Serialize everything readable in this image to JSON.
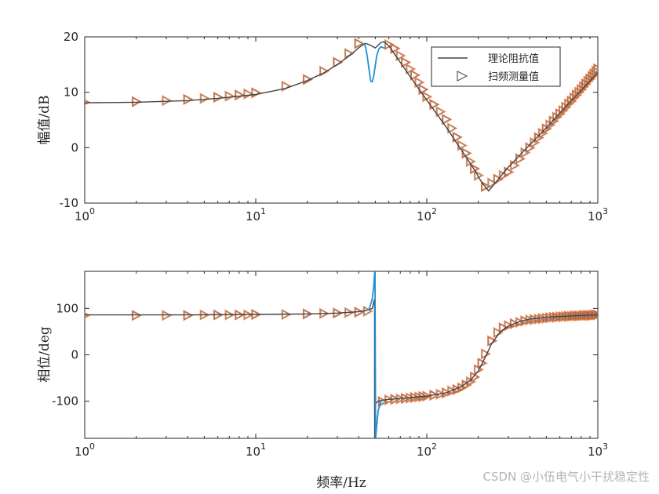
{
  "watermark": "CSDN @小伍电气小干扰稳定性",
  "chart_data": [
    {
      "type": "line",
      "ylabel": "幅值/dB",
      "xlabel": "",
      "xscale": "log",
      "xlim": [
        1,
        1000
      ],
      "ylim": [
        -10,
        20
      ],
      "xticks": [
        1,
        10,
        100,
        1000
      ],
      "xtick_labels": [
        {
          "base": "10",
          "exp": "0"
        },
        {
          "base": "10",
          "exp": "1"
        },
        {
          "base": "10",
          "exp": "2"
        },
        {
          "base": "10",
          "exp": "3"
        }
      ],
      "yticks": [
        -10,
        0,
        10,
        20
      ],
      "ytick_labels": [
        "-10",
        "0",
        "10",
        "20"
      ],
      "legend": {
        "placement": "top-right",
        "entries": [
          {
            "label": "理论阻抗值",
            "marker": "line",
            "color": "#444444"
          },
          {
            "label": "扫频测量值",
            "marker": "triangle-right",
            "color": "#f07d3c"
          }
        ]
      },
      "series": [
        {
          "name": "理论阻抗值",
          "style": "line",
          "color": "#444444",
          "x": [
            1,
            2,
            4,
            6,
            10,
            15,
            20,
            25,
            30,
            35,
            40,
            42,
            44,
            46,
            48,
            50,
            52,
            54,
            56,
            58,
            60,
            70,
            80,
            100,
            130,
            160,
            190,
            210,
            230,
            260,
            300,
            400,
            500,
            700,
            1000
          ],
          "y": [
            8.1,
            8.2,
            8.5,
            8.9,
            9.6,
            10.7,
            12.1,
            13.5,
            15.0,
            16.5,
            18.0,
            18.5,
            18.8,
            18.6,
            18.3,
            18.0,
            18.5,
            19.0,
            19.1,
            18.8,
            18.4,
            15.4,
            12.8,
            8.6,
            3.7,
            -0.5,
            -4.0,
            -6.3,
            -7.8,
            -5.8,
            -3.5,
            0.5,
            3.6,
            8.5,
            13.5
          ]
        },
        {
          "name": "",
          "style": "line",
          "color": "#1e8fd6",
          "x": [
            43,
            44,
            45,
            46,
            47,
            48,
            49,
            50,
            51,
            52,
            53,
            54,
            55,
            56,
            57
          ],
          "y": [
            18.9,
            18.0,
            16.2,
            14.0,
            12.0,
            11.9,
            13.0,
            14.9,
            16.6,
            17.5,
            18.0,
            18.2,
            18.1,
            18.0,
            18.0
          ]
        },
        {
          "name": "扫频测量值",
          "style": "triangle-right",
          "color": "#f07d3c",
          "x": [
            1,
            2,
            3,
            4,
            5,
            6,
            7,
            8,
            9,
            10,
            15,
            20,
            25,
            30,
            35,
            40,
            60,
            65,
            70,
            75,
            80,
            85,
            90,
            95,
            100,
            110,
            120,
            130,
            140,
            150,
            160,
            170,
            180,
            190,
            200,
            220,
            240,
            260,
            280,
            300,
            325,
            350,
            375,
            400,
            425,
            450,
            475,
            500,
            525,
            550,
            575,
            600,
            625,
            650,
            675,
            700,
            725,
            750,
            775,
            800,
            825,
            850,
            875,
            900,
            925,
            950,
            975,
            1000
          ],
          "y": [
            8.2,
            8.3,
            8.5,
            8.7,
            8.9,
            9.1,
            9.3,
            9.5,
            9.7,
            9.9,
            11.1,
            12.3,
            13.8,
            15.4,
            17.0,
            18.8,
            18.6,
            17.9,
            16.6,
            15.4,
            14.2,
            13.1,
            11.8,
            10.5,
            9.2,
            7.8,
            6.5,
            5.1,
            3.5,
            1.9,
            0.4,
            -1.0,
            -2.5,
            -3.8,
            -5.0,
            -7.0,
            -6.4,
            -5.7,
            -5.0,
            -4.4,
            -3.2,
            -2.0,
            -0.9,
            0.0,
            0.9,
            1.8,
            2.6,
            3.4,
            4.1,
            4.8,
            5.5,
            6.1,
            6.7,
            7.3,
            7.9,
            8.4,
            9.0,
            9.5,
            10.0,
            10.5,
            11.0,
            11.5,
            12.0,
            12.4,
            12.9,
            13.3,
            13.8,
            14.2
          ]
        }
      ]
    },
    {
      "type": "line",
      "ylabel": "相位/deg",
      "xlabel": "频率/Hz",
      "xscale": "log",
      "xlim": [
        1,
        1000
      ],
      "ylim": [
        -180,
        180
      ],
      "xticks": [
        1,
        10,
        100,
        1000
      ],
      "xtick_labels": [
        {
          "base": "10",
          "exp": "0"
        },
        {
          "base": "10",
          "exp": "1"
        },
        {
          "base": "10",
          "exp": "2"
        },
        {
          "base": "10",
          "exp": "3"
        }
      ],
      "yticks": [
        -100,
        0,
        100
      ],
      "ytick_labels": [
        "-100",
        "0",
        "100"
      ],
      "series": [
        {
          "name": "理论阻抗值",
          "style": "line",
          "color": "#444444",
          "x": [
            1,
            2,
            4,
            10,
            20,
            30,
            40,
            45,
            48,
            49.5,
            49.6,
            50,
            52,
            55,
            60,
            70,
            80,
            100,
            130,
            160,
            180,
            200,
            220,
            240,
            270,
            300,
            350,
            400,
            500,
            700,
            1000
          ],
          "y": [
            86,
            86,
            86,
            87,
            88,
            90,
            93,
            96,
            100,
            120,
            -180,
            -105,
            -100,
            -98,
            -96,
            -94,
            -92,
            -89,
            -82,
            -68,
            -55,
            -35,
            -5,
            25,
            50,
            62,
            72,
            77,
            81,
            84,
            86
          ]
        },
        {
          "name": "",
          "style": "line",
          "color": "#1e8fd6",
          "x": [
            44,
            46,
            48,
            49,
            49.5,
            49.8,
            50.2,
            50.5,
            51,
            52,
            54,
            56
          ],
          "y": [
            95,
            98,
            120,
            150,
            175,
            180,
            -180,
            -170,
            -150,
            -120,
            -100,
            -98
          ]
        },
        {
          "name": "扫频测量值",
          "style": "triangle-right",
          "color": "#f07d3c",
          "x": [
            1,
            2,
            3,
            4,
            5,
            6,
            7,
            8,
            9,
            10,
            15,
            20,
            25,
            30,
            35,
            40,
            45,
            55,
            60,
            65,
            70,
            75,
            80,
            85,
            90,
            95,
            100,
            110,
            120,
            130,
            140,
            150,
            160,
            170,
            180,
            190,
            200,
            210,
            220,
            240,
            260,
            280,
            300,
            325,
            350,
            375,
            400,
            425,
            450,
            475,
            500,
            525,
            550,
            575,
            600,
            625,
            650,
            675,
            700,
            725,
            750,
            775,
            800,
            825,
            850,
            875,
            900,
            925,
            950,
            975,
            1000
          ],
          "y": [
            85,
            85,
            85,
            85,
            86,
            86,
            86,
            86,
            86,
            87,
            87,
            88,
            89,
            90,
            91,
            92,
            94,
            -101,
            -97,
            -96,
            -95,
            -94,
            -93,
            -92,
            -91,
            -90,
            -89,
            -87,
            -85,
            -82,
            -78,
            -75,
            -71,
            -65,
            -58,
            -48,
            -32,
            -18,
            2,
            30,
            48,
            58,
            63,
            67,
            70,
            73,
            75,
            76,
            77,
            78,
            79,
            80,
            81,
            81,
            82,
            82,
            83,
            83,
            83,
            84,
            84,
            84,
            84,
            85,
            85,
            85,
            85,
            85,
            86,
            86,
            86
          ]
        }
      ]
    }
  ]
}
